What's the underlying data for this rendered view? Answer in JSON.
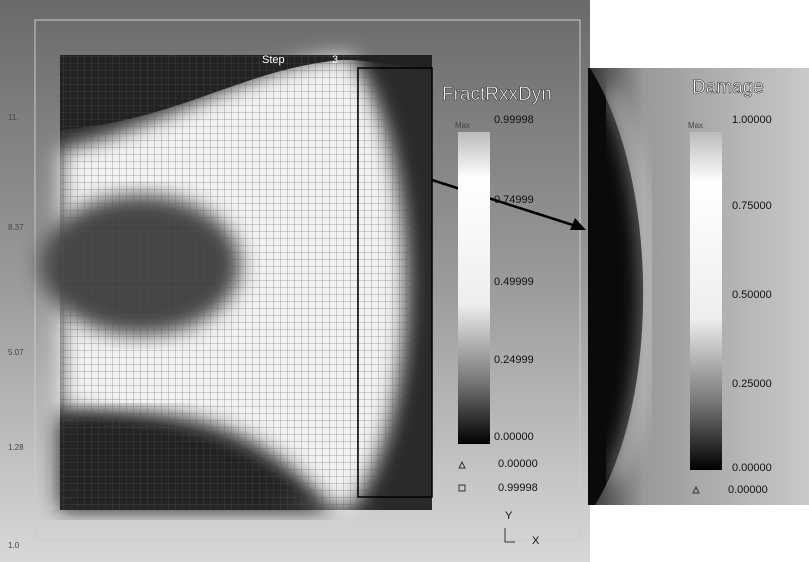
{
  "left_panel": {
    "step_label": "Step",
    "step_value": "3",
    "y_axis_labels": [
      "11.",
      "8.37",
      "5.07",
      "1.28"
    ],
    "x_axis_label": "1.0"
  },
  "legend_1": {
    "title": "FractRxxDyn",
    "max_label": "Max",
    "ticks": [
      "0.99998",
      "0.74999",
      "0.49999",
      "0.24999",
      "0.00000"
    ],
    "min": "0.00000",
    "max": "0.99998",
    "axes": [
      "Y",
      "X"
    ]
  },
  "legend_2": {
    "title": "Damage",
    "max_label": "Max",
    "ticks": [
      "1.00000",
      "0.75000",
      "0.50000",
      "0.25000",
      "0.00000"
    ],
    "min": "0.00000"
  }
}
